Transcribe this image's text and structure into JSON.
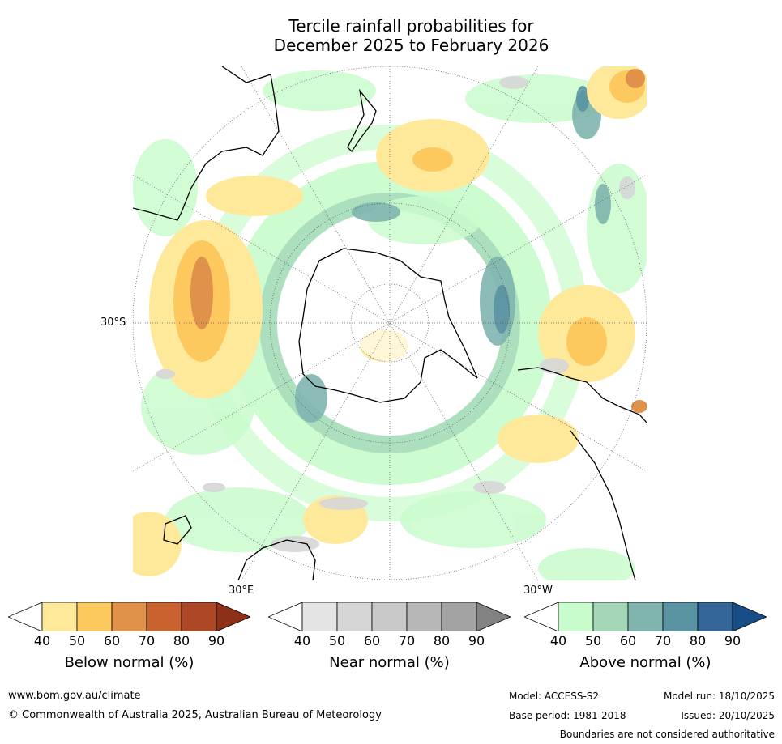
{
  "title": {
    "line1": "Tercile rainfall probabilities for",
    "line2": "December 2025 to February 2026"
  },
  "map": {
    "projection": "south polar stereographic",
    "labels": {
      "lat_30s": "30°S",
      "lon_30e": "30°E",
      "lon_30w": "30°W"
    },
    "coastline_color": "#000000"
  },
  "legends": [
    {
      "name": "below-normal",
      "title": "Below normal (%)",
      "ticks": [
        "40",
        "50",
        "60",
        "70",
        "80",
        "90"
      ],
      "colors": [
        "#fee99b",
        "#fdc95f",
        "#e0914a",
        "#c9622f",
        "#ac4826",
        "#8e2f17"
      ]
    },
    {
      "name": "near-normal",
      "title": "Near normal (%)",
      "ticks": [
        "40",
        "50",
        "60",
        "70",
        "80",
        "90"
      ],
      "colors": [
        "#e4e4e4",
        "#d6d6d6",
        "#c8c8c8",
        "#b7b7b7",
        "#a3a3a3",
        "#828282"
      ]
    },
    {
      "name": "above-normal",
      "title": "Above normal (%)",
      "ticks": [
        "40",
        "50",
        "60",
        "70",
        "80",
        "90"
      ],
      "colors": [
        "#c9fccc",
        "#a3d7b8",
        "#80b5af",
        "#5a94a2",
        "#346699",
        "#174e87"
      ]
    }
  ],
  "footer": {
    "website": "www.bom.gov.au/climate",
    "copyright": "© Commonwealth of Australia 2025, Australian Bureau of Meteorology",
    "model": "Model: ACCESS-S2",
    "model_run": "Model run: 18/10/2025",
    "base_period": "Base period: 1981-2018",
    "issued": "Issued: 20/10/2025",
    "disclaimer": "Boundaries are not considered authoritative"
  }
}
